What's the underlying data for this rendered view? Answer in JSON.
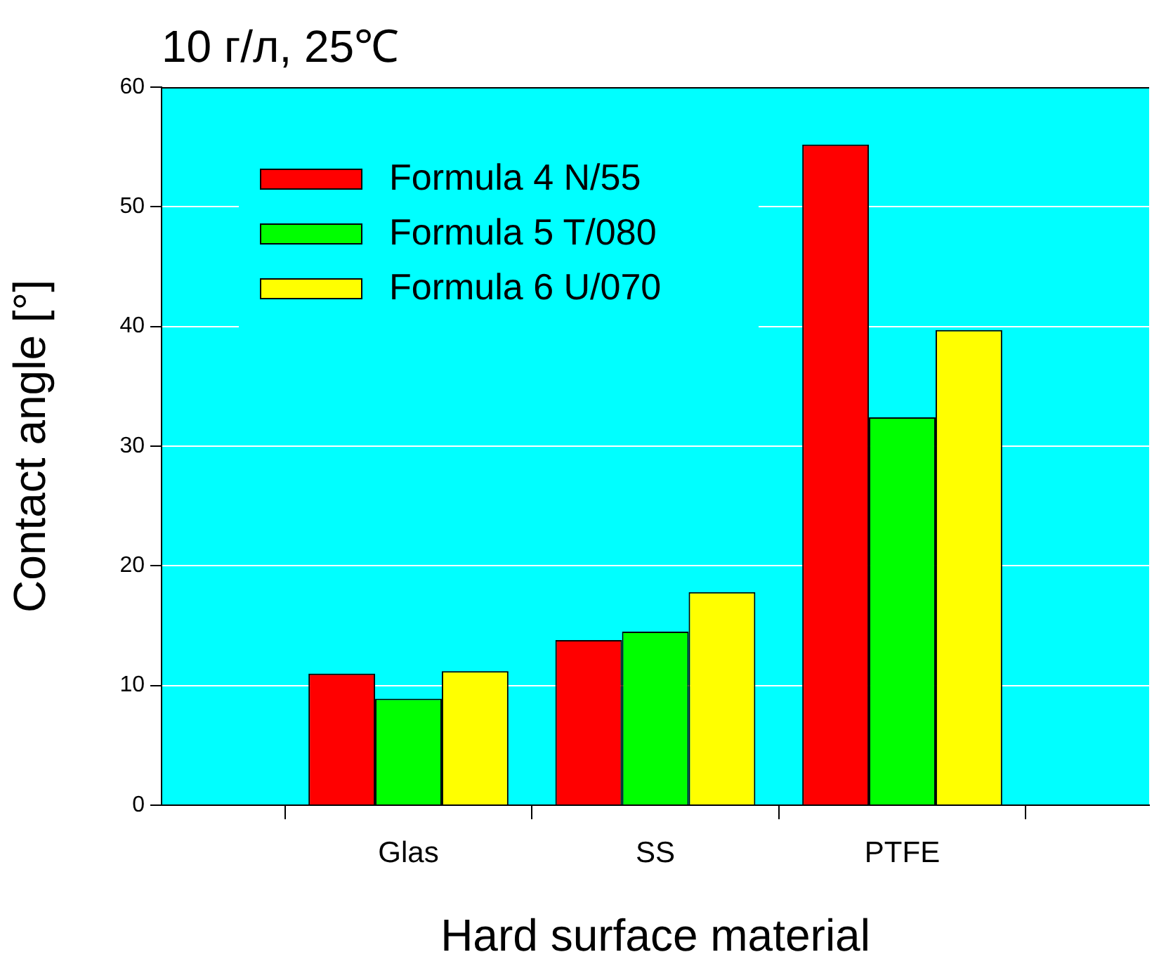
{
  "chart_data": {
    "type": "bar",
    "title": "10 г/л, 25℃",
    "xlabel": "Hard surface material",
    "ylabel": "Contact angle [°]",
    "categories": [
      null,
      "Glas",
      "SS",
      "PTFE",
      null
    ],
    "series": [
      {
        "name": "Formula 4 N/55",
        "color": "#ff0000",
        "values": [
          null,
          11.0,
          13.8,
          55.2,
          null
        ]
      },
      {
        "name": "Formula 5 T/080",
        "color": "#00ff00",
        "values": [
          null,
          8.9,
          14.5,
          32.4,
          null
        ]
      },
      {
        "name": "Formula 6 U/070",
        "color": "#ffff00",
        "values": [
          null,
          11.2,
          17.8,
          39.7,
          null
        ]
      }
    ],
    "ylim": [
      0,
      60
    ],
    "yticks": [
      0,
      10,
      20,
      30,
      40,
      50,
      60
    ],
    "grid": "y",
    "legend": "top left"
  }
}
